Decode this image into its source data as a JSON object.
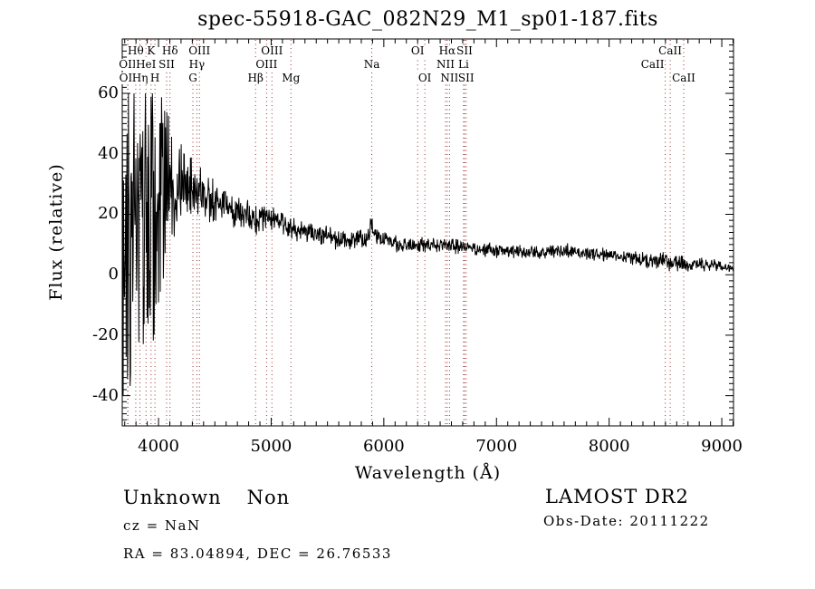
{
  "title": "spec-55918-GAC_082N29_M1_sp01-187.fits",
  "annotations": {
    "class": "Unknown",
    "subclass": "Non",
    "cz": "cz = NaN",
    "radec": "RA =  83.04894, DEC =  26.76533",
    "survey": "LAMOST DR2",
    "obs_date": "Obs-Date: 20111222"
  },
  "chart_data": {
    "type": "line",
    "title": "spec-55918-GAC_082N29_M1_sp01-187.fits",
    "xlabel": "Wavelength (Å)",
    "ylabel": "Flux (relative)",
    "xlim": [
      3678,
      9104
    ],
    "ylim": [
      -50,
      78
    ],
    "x_ticks": [
      4000,
      5000,
      6000,
      7000,
      8000,
      9000
    ],
    "y_ticks": [
      -40,
      -20,
      0,
      20,
      40,
      60
    ],
    "x_minor_step": 100,
    "y_minor_step": 2,
    "grid": false,
    "legend": null,
    "spectrum_color": "#000000",
    "spectral_line_color": "#993333",
    "noise_seed": 12345,
    "points_count": 1400,
    "flux_clamp": [
      -46,
      60
    ],
    "spectral_lines": [
      {
        "label": "OII",
        "wavelength": 3726.0,
        "row": 2
      },
      {
        "label": "OII",
        "wavelength": 3728.8,
        "row": 3
      },
      {
        "label": "Hθ",
        "wavelength": 3797.9,
        "row": 1
      },
      {
        "label": "Hη",
        "wavelength": 3835.4,
        "row": 3
      },
      {
        "label": "HeI",
        "wavelength": 3889.0,
        "row": 2
      },
      {
        "label": "K",
        "wavelength": 3933.7,
        "row": 1
      },
      {
        "label": "H",
        "wavelength": 3968.5,
        "row": 3
      },
      {
        "label": "SII",
        "wavelength": 4072.0,
        "row": 2
      },
      {
        "label": "Hδ",
        "wavelength": 4101.7,
        "row": 1
      },
      {
        "label": "G",
        "wavelength": 4305.0,
        "row": 3
      },
      {
        "label": "Hγ",
        "wavelength": 4340.5,
        "row": 2
      },
      {
        "label": "OIII",
        "wavelength": 4363.2,
        "row": 1
      },
      {
        "label": "Hβ",
        "wavelength": 4861.3,
        "row": 3
      },
      {
        "label": "OIII",
        "wavelength": 4958.9,
        "row": 2
      },
      {
        "label": "OIII",
        "wavelength": 5006.8,
        "row": 1
      },
      {
        "label": "Mg",
        "wavelength": 5175.3,
        "row": 3
      },
      {
        "label": "Na",
        "wavelength": 5893.0,
        "row": 2
      },
      {
        "label": "OI",
        "wavelength": 6300.3,
        "row": 1
      },
      {
        "label": "OI",
        "wavelength": 6363.8,
        "row": 3
      },
      {
        "label": "NII",
        "wavelength": 6548.0,
        "row": 2
      },
      {
        "label": "Hα",
        "wavelength": 6562.8,
        "row": 1
      },
      {
        "label": "NII",
        "wavelength": 6583.4,
        "row": 3
      },
      {
        "label": "Li",
        "wavelength": 6707.8,
        "row": 2
      },
      {
        "label": "SII",
        "wavelength": 6716.4,
        "row": 1
      },
      {
        "label": "SII",
        "wavelength": 6730.8,
        "row": 3
      },
      {
        "label": "CaII",
        "wavelength": 8498.0,
        "row": 2,
        "dx": -14
      },
      {
        "label": "CaII",
        "wavelength": 8542.1,
        "row": 1
      },
      {
        "label": "CaII",
        "wavelength": 8662.1,
        "row": 3
      }
    ],
    "spectrum_envelope": [
      [
        3678,
        6,
        50
      ],
      [
        3720,
        9,
        48
      ],
      [
        3760,
        12,
        46
      ],
      [
        3800,
        14,
        45
      ],
      [
        3850,
        17,
        43
      ],
      [
        3900,
        20,
        41
      ],
      [
        3950,
        22,
        38
      ],
      [
        4000,
        26,
        30
      ],
      [
        4050,
        28,
        24
      ],
      [
        4100,
        30,
        19
      ],
      [
        4150,
        30,
        15
      ],
      [
        4200,
        30,
        12
      ],
      [
        4260,
        29,
        10
      ],
      [
        4320,
        28,
        9
      ],
      [
        4380,
        27,
        8
      ],
      [
        4440,
        25,
        6.5
      ],
      [
        4500,
        24,
        5.5
      ],
      [
        4600,
        23,
        5
      ],
      [
        4700,
        21,
        4.5
      ],
      [
        4800,
        20,
        4.2
      ],
      [
        4861,
        17.5,
        4
      ],
      [
        4930,
        19,
        4
      ],
      [
        5000,
        18,
        3.8
      ],
      [
        5100,
        17,
        3.6
      ],
      [
        5175,
        15.5,
        3.2
      ],
      [
        5250,
        15,
        3.2
      ],
      [
        5350,
        14,
        3
      ],
      [
        5450,
        13,
        3
      ],
      [
        5550,
        12,
        3
      ],
      [
        5650,
        11.5,
        2.9
      ],
      [
        5750,
        11.5,
        2.9
      ],
      [
        5850,
        12.5,
        3
      ],
      [
        5893,
        16,
        3.6
      ],
      [
        5940,
        12,
        2.6
      ],
      [
        6050,
        11,
        2.5
      ],
      [
        6200,
        10,
        2.4
      ],
      [
        6300,
        9.5,
        2.3
      ],
      [
        6420,
        9.5,
        2.2
      ],
      [
        6563,
        10,
        2.3
      ],
      [
        6660,
        9,
        2.1
      ],
      [
        6800,
        8.5,
        2
      ],
      [
        7000,
        8,
        2
      ],
      [
        7200,
        7.5,
        1.9
      ],
      [
        7400,
        7.5,
        1.8
      ],
      [
        7600,
        7.8,
        2.1
      ],
      [
        7800,
        7,
        1.8
      ],
      [
        8000,
        6.5,
        1.8
      ],
      [
        8150,
        6,
        1.9
      ],
      [
        8300,
        5,
        2.3
      ],
      [
        8450,
        4.5,
        2.5
      ],
      [
        8550,
        4,
        2.3
      ],
      [
        8700,
        3.6,
        2
      ],
      [
        8850,
        3.2,
        1.9
      ],
      [
        8980,
        2.8,
        1.8
      ],
      [
        9040,
        2.2,
        1.5
      ],
      [
        9104,
        2.4,
        0.8
      ]
    ]
  }
}
